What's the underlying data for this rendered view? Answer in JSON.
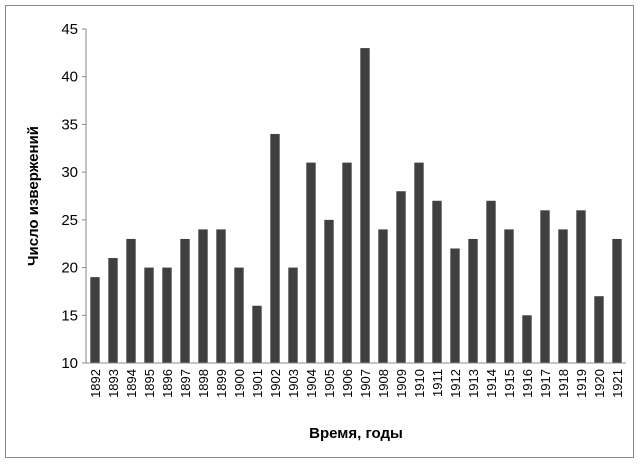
{
  "chart_data": {
    "type": "bar",
    "x_label": "Время, годы",
    "y_label": "Число извержений",
    "categories": [
      "1892",
      "1893",
      "1894",
      "1895",
      "1896",
      "1897",
      "1898",
      "1899",
      "1900",
      "1901",
      "1902",
      "1903",
      "1904",
      "1905",
      "1906",
      "1907",
      "1908",
      "1909",
      "1910",
      "1911",
      "1912",
      "1913",
      "1914",
      "1915",
      "1916",
      "1917",
      "1918",
      "1919",
      "1920",
      "1921"
    ],
    "values": [
      19,
      21,
      23,
      20,
      20,
      23,
      24,
      24,
      20,
      16,
      34,
      20,
      31,
      25,
      31,
      43,
      24,
      28,
      31,
      27,
      22,
      23,
      27,
      24,
      15,
      26,
      24,
      26,
      17,
      23
    ],
    "color": "#404040",
    "ylim": [
      10,
      45
    ],
    "yticks": [
      10,
      15,
      20,
      25,
      30,
      35,
      40,
      45
    ],
    "grid": false
  }
}
